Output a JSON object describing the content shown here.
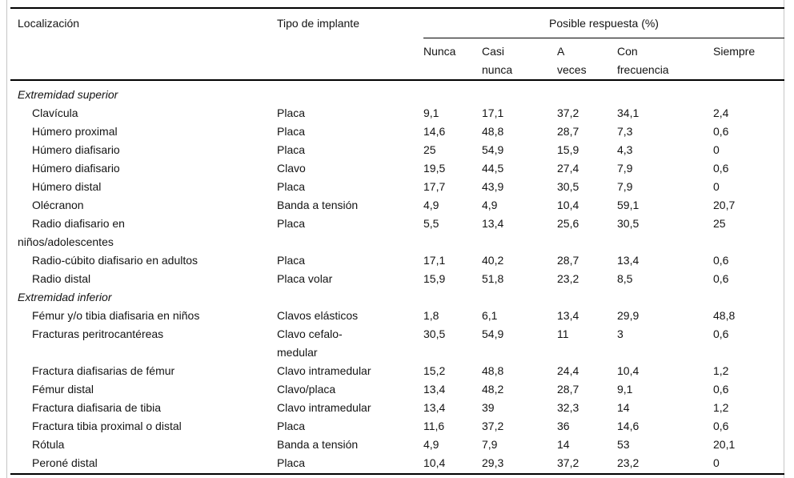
{
  "table": {
    "header": {
      "col_localizacion": "Localización",
      "col_tipo": "Tipo de implante",
      "col_group": "Posible respuesta (%)",
      "subcols": [
        {
          "line1": "Nunca",
          "line2": ""
        },
        {
          "line1": "Casi",
          "line2": "nunca"
        },
        {
          "line1": "A",
          "line2": "veces"
        },
        {
          "line1": "Con",
          "line2": "frecuencia"
        },
        {
          "line1": "Siempre",
          "line2": ""
        }
      ]
    },
    "rows": [
      {
        "type": "section",
        "label": "Extremidad superior"
      },
      {
        "type": "item",
        "location": "Clavícula",
        "implant": "Placa",
        "values": [
          "9,1",
          "17,1",
          "37,2",
          "34,1",
          "2,4"
        ]
      },
      {
        "type": "item",
        "location": "Húmero proximal",
        "implant": "Placa",
        "values": [
          "14,6",
          "48,8",
          "28,7",
          "7,3",
          "0,6"
        ]
      },
      {
        "type": "item",
        "location": "Húmero diafisario",
        "implant": "Placa",
        "values": [
          "25",
          "54,9",
          "15,9",
          "4,3",
          "0"
        ]
      },
      {
        "type": "item",
        "location": "Húmero diafisario",
        "implant": "Clavo",
        "values": [
          "19,5",
          "44,5",
          "27,4",
          "7,9",
          "0,6"
        ]
      },
      {
        "type": "item",
        "location": "Húmero distal",
        "implant": "Placa",
        "values": [
          "17,7",
          "43,9",
          "30,5",
          "7,9",
          "0"
        ]
      },
      {
        "type": "item",
        "location": "Olécranon",
        "implant": "Banda a tensión",
        "values": [
          "4,9",
          "4,9",
          "10,4",
          "59,1",
          "20,7"
        ]
      },
      {
        "type": "item",
        "location": "Radio diafisario en",
        "location_line2": "niños/adolescentes",
        "implant": "Placa",
        "values": [
          "5,5",
          "13,4",
          "25,6",
          "30,5",
          "25"
        ]
      },
      {
        "type": "item",
        "location": "Radio-cúbito diafisario en adultos",
        "implant": "Placa",
        "values": [
          "17,1",
          "40,2",
          "28,7",
          "13,4",
          "0,6"
        ]
      },
      {
        "type": "item",
        "location": "Radio distal",
        "implant": "Placa volar",
        "values": [
          "15,9",
          "51,8",
          "23,2",
          "8,5",
          "0,6"
        ]
      },
      {
        "type": "section",
        "label": "Extremidad inferior"
      },
      {
        "type": "item",
        "location": "Fémur y/o tibia diafisaria en niños",
        "implant": "Clavos elásticos",
        "values": [
          "1,8",
          "6,1",
          "13,4",
          "29,9",
          "48,8"
        ]
      },
      {
        "type": "item",
        "location": "Fracturas peritrocantéreas",
        "implant": "Clavo cefalo-",
        "implant_line2": "medular",
        "values": [
          "30,5",
          "54,9",
          "11",
          "3",
          "0,6"
        ]
      },
      {
        "type": "item",
        "location": "Fractura diafisarias de fémur",
        "implant": "Clavo intramedular",
        "values": [
          "15,2",
          "48,8",
          "24,4",
          "10,4",
          "1,2"
        ]
      },
      {
        "type": "item",
        "location": "Fémur distal",
        "implant": "Clavo/placa",
        "values": [
          "13,4",
          "48,2",
          "28,7",
          "9,1",
          "0,6"
        ]
      },
      {
        "type": "item",
        "location": "Fractura diafisaria de tibia",
        "implant": "Clavo intramedular",
        "values": [
          "13,4",
          "39",
          "32,3",
          "14",
          "1,2"
        ]
      },
      {
        "type": "item",
        "location": "Fractura tibia proximal o distal",
        "implant": "Placa",
        "values": [
          "11,6",
          "37,2",
          "36",
          "14,6",
          "0,6"
        ]
      },
      {
        "type": "item",
        "location": "Rótula",
        "implant": "Banda a tensión",
        "values": [
          "4,9",
          "7,9",
          "14",
          "53",
          "20,1"
        ]
      },
      {
        "type": "item",
        "location": "Peroné distal",
        "implant": "Placa",
        "values": [
          "10,4",
          "29,3",
          "37,2",
          "23,2",
          "0"
        ]
      }
    ]
  }
}
